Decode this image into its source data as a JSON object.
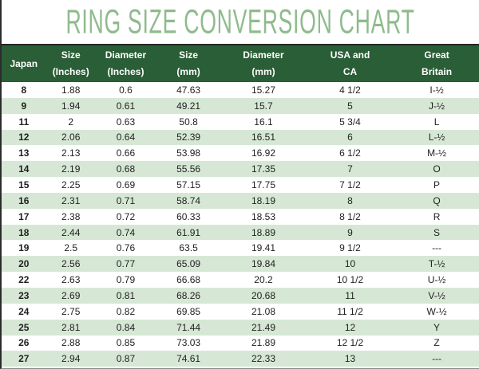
{
  "title": "RING SIZE CONVERSION CHART",
  "theme": {
    "header_bg": "#295E36",
    "stripe_bg": "#D6E8D5",
    "title_color": "#8FBB8D",
    "border_color": "#2B2B2B",
    "text_color": "#1F1F1F",
    "header_text_color": "#FFFFFF"
  },
  "chart_data": {
    "type": "table",
    "title": "RING SIZE CONVERSION CHART",
    "legend_position": "none",
    "grid": "striped-rows",
    "columns": [
      {
        "key": "japan",
        "line1": "Japan",
        "line2": ""
      },
      {
        "key": "size-inches",
        "line1": "Size",
        "line2": "(Inches)"
      },
      {
        "key": "diameter-inches",
        "line1": "Diameter",
        "line2": "(Inches)"
      },
      {
        "key": "size-mm",
        "line1": "Size",
        "line2": "(mm)"
      },
      {
        "key": "diameter-mm",
        "line1": "Diameter",
        "line2": "(mm)"
      },
      {
        "key": "usa-ca",
        "line1": "USA and",
        "line2": "CA"
      },
      {
        "key": "great-britain",
        "line1": "Great",
        "line2": "Britain"
      }
    ],
    "rows": [
      [
        "8",
        "1.88",
        "0.6",
        "47.63",
        "15.27",
        "4 1/2",
        "I-½"
      ],
      [
        "9",
        "1.94",
        "0.61",
        "49.21",
        "15.7",
        "5",
        "J-½"
      ],
      [
        "11",
        "2",
        "0.63",
        "50.8",
        "16.1",
        "5 3/4",
        "L"
      ],
      [
        "12",
        "2.06",
        "0.64",
        "52.39",
        "16.51",
        "6",
        "L-½"
      ],
      [
        "13",
        "2.13",
        "0.66",
        "53.98",
        "16.92",
        "6 1/2",
        "M-½"
      ],
      [
        "14",
        "2.19",
        "0.68",
        "55.56",
        "17.35",
        "7",
        "O"
      ],
      [
        "15",
        "2.25",
        "0.69",
        "57.15",
        "17.75",
        "7 1/2",
        "P"
      ],
      [
        "16",
        "2.31",
        "0.71",
        "58.74",
        "18.19",
        "8",
        "Q"
      ],
      [
        "17",
        "2.38",
        "0.72",
        "60.33",
        "18.53",
        "8 1/2",
        "R"
      ],
      [
        "18",
        "2.44",
        "0.74",
        "61.91",
        "18.89",
        "9",
        "S"
      ],
      [
        "19",
        "2.5",
        "0.76",
        "63.5",
        "19.41",
        "9 1/2",
        "---"
      ],
      [
        "20",
        "2.56",
        "0.77",
        "65.09",
        "19.84",
        "10",
        "T-½"
      ],
      [
        "22",
        "2.63",
        "0.79",
        "66.68",
        "20.2",
        "10 1/2",
        "U-½"
      ],
      [
        "23",
        "2.69",
        "0.81",
        "68.26",
        "20.68",
        "11",
        "V-½"
      ],
      [
        "24",
        "2.75",
        "0.82",
        "69.85",
        "21.08",
        "11 1/2",
        "W-½"
      ],
      [
        "25",
        "2.81",
        "0.84",
        "71.44",
        "21.49",
        "12",
        "Y"
      ],
      [
        "26",
        "2.88",
        "0.85",
        "73.03",
        "21.89",
        "12 1/2",
        "Z"
      ],
      [
        "27",
        "2.94",
        "0.87",
        "74.61",
        "22.33",
        "13",
        "---"
      ]
    ]
  }
}
